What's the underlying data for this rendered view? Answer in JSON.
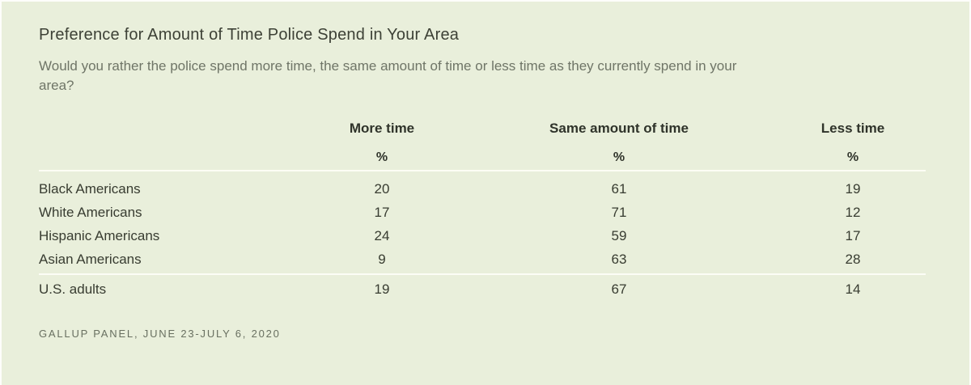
{
  "colors": {
    "page_background": "#fdfdfa",
    "panel_background": "#e9efdb",
    "title_text": "#3d4136",
    "subtitle_text": "#6f7567",
    "header_text": "#2f332a",
    "value_text": "#383c31",
    "divider": "#fcfdf5",
    "source_text": "#697061"
  },
  "chart_data": {
    "type": "table",
    "title": "Preference for Amount of Time Police Spend in Your Area",
    "subtitle": "Would you rather the police spend more time, the same amount of time or less time as they currently spend in your area?",
    "columns": [
      "More time",
      "Same amount of time",
      "Less time"
    ],
    "unit_row": [
      "%",
      "%",
      "%"
    ],
    "rows": [
      {
        "label": "Black Americans",
        "values": [
          20,
          61,
          19
        ]
      },
      {
        "label": "White Americans",
        "values": [
          17,
          71,
          12
        ]
      },
      {
        "label": "Hispanic Americans",
        "values": [
          24,
          59,
          17
        ]
      },
      {
        "label": "Asian Americans",
        "values": [
          9,
          63,
          28
        ]
      }
    ],
    "summary_row": {
      "label": "U.S. adults",
      "values": [
        19,
        67,
        14
      ]
    },
    "source": "GALLUP PANEL, JUNE 23-JULY 6, 2020",
    "layout": {
      "grid": "off",
      "value_alignment": "center",
      "label_column": "left"
    }
  }
}
